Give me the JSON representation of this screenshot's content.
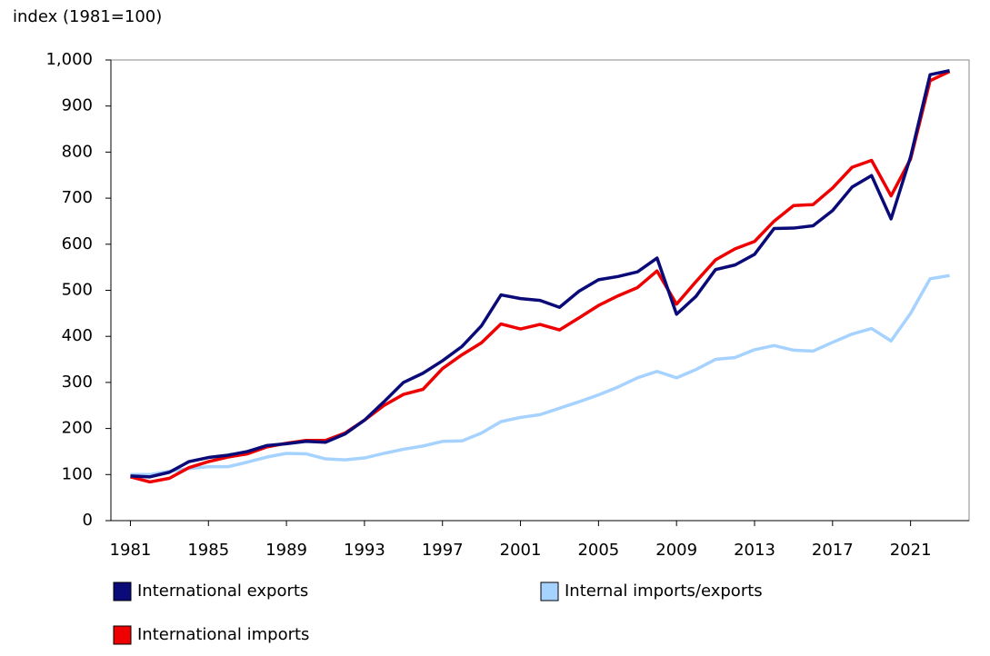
{
  "chart_data": {
    "type": "line",
    "y_axis_label": "index (1981=100)",
    "x": [
      1981,
      1982,
      1983,
      1984,
      1985,
      1986,
      1987,
      1988,
      1989,
      1990,
      1991,
      1992,
      1993,
      1994,
      1995,
      1996,
      1997,
      1998,
      1999,
      2000,
      2001,
      2002,
      2003,
      2004,
      2005,
      2006,
      2007,
      2008,
      2009,
      2010,
      2011,
      2012,
      2013,
      2014,
      2015,
      2016,
      2017,
      2018,
      2019,
      2020,
      2021,
      2022,
      2023
    ],
    "series": [
      {
        "name": "International exports",
        "color": "#0a0a78",
        "values": [
          97,
          95,
          105,
          128,
          137,
          142,
          150,
          163,
          167,
          172,
          170,
          188,
          218,
          258,
          300,
          320,
          347,
          378,
          423,
          490,
          482,
          478,
          463,
          498,
          523,
          530,
          540,
          570,
          448,
          487,
          545,
          555,
          578,
          634,
          635,
          640,
          673,
          724,
          749,
          655,
          790,
          968,
          977
        ]
      },
      {
        "name": "Internal imports/exports",
        "color": "#a6d2ff",
        "values": [
          100,
          100,
          107,
          113,
          117,
          117,
          127,
          138,
          146,
          145,
          134,
          132,
          136,
          146,
          155,
          162,
          172,
          173,
          190,
          215,
          224,
          230,
          244,
          258,
          273,
          290,
          310,
          324,
          310,
          328,
          350,
          354,
          371,
          380,
          370,
          368,
          387,
          405,
          417,
          390,
          450,
          525,
          532
        ]
      },
      {
        "name": "International imports",
        "color": "#ee0000",
        "values": [
          95,
          84,
          92,
          115,
          128,
          138,
          145,
          160,
          168,
          174,
          174,
          190,
          218,
          250,
          274,
          285,
          330,
          360,
          386,
          427,
          416,
          426,
          414,
          440,
          467,
          488,
          506,
          542,
          470,
          519,
          566,
          590,
          606,
          650,
          684,
          686,
          722,
          767,
          782,
          705,
          785,
          955,
          975
        ]
      }
    ],
    "xlim": [
      1980,
      2024
    ],
    "xticks": [
      1981,
      1985,
      1989,
      1993,
      1997,
      2001,
      2005,
      2009,
      2013,
      2017,
      2021
    ],
    "ylim": [
      0,
      1000
    ],
    "yticks": [
      0,
      100,
      200,
      300,
      400,
      500,
      600,
      700,
      800,
      900,
      {
        "value": 1000,
        "label": "1,000"
      }
    ]
  }
}
